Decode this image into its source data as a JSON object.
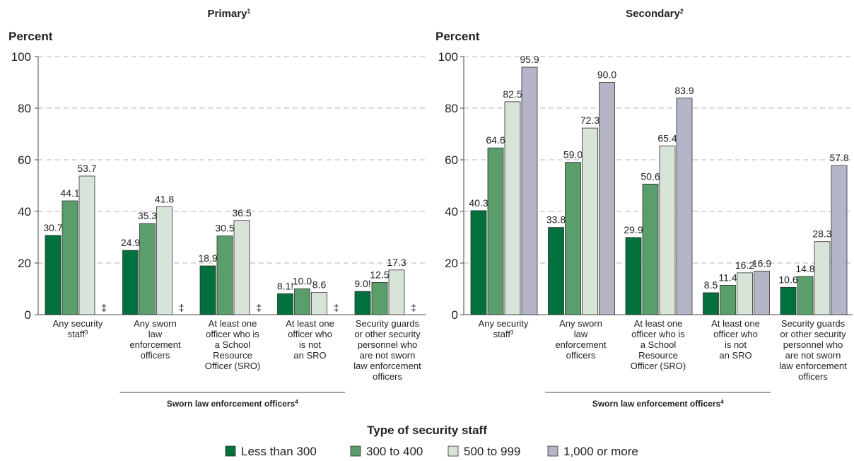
{
  "chart_data": [
    {
      "type": "bar",
      "title": "Primary",
      "title_note": "1",
      "ylabel": "Percent",
      "ylim": [
        0,
        100
      ],
      "yticks": [
        "0",
        "20",
        "40",
        "60",
        "80",
        "100"
      ],
      "grid": true,
      "categories": [
        {
          "lines": [
            "Any security",
            "staff"
          ],
          "note": "3"
        },
        {
          "lines": [
            "Any sworn",
            "law",
            "enforcement",
            "officers"
          ]
        },
        {
          "lines": [
            "At least one",
            "officer who is",
            "a School",
            "Resource",
            "Officer (SRO)"
          ]
        },
        {
          "lines": [
            "At least one",
            "officer who",
            "is not",
            "an SRO"
          ]
        },
        {
          "lines": [
            "Security guards",
            "or other security",
            "personnel who",
            "are not sworn",
            "law enforcement",
            "officers"
          ]
        }
      ],
      "series": [
        {
          "name": "Less than 300",
          "values": [
            30.7,
            24.9,
            18.9,
            8.1,
            9.0
          ],
          "labels": [
            "30.7",
            "24.9",
            "18.9",
            "8.1!",
            "9.0!"
          ]
        },
        {
          "name": "300 to 400",
          "values": [
            44.1,
            35.3,
            30.5,
            10.0,
            12.5
          ],
          "labels": [
            "44.1",
            "35.3",
            "30.5",
            "10.0",
            "12.5"
          ]
        },
        {
          "name": "500 to 999",
          "values": [
            53.7,
            41.8,
            36.5,
            8.6,
            17.3
          ],
          "labels": [
            "53.7",
            "41.8",
            "36.5",
            "8.6",
            "17.3"
          ]
        },
        {
          "name": "1,000 or more",
          "values": [
            null,
            null,
            null,
            null,
            null
          ],
          "labels": [
            "‡",
            "‡",
            "‡",
            "‡",
            "‡"
          ]
        }
      ],
      "group_label": "Sworn law enforcement officers",
      "group_label_note": "4"
    },
    {
      "type": "bar",
      "title": "Secondary",
      "title_note": "2",
      "ylabel": "Percent",
      "ylim": [
        0,
        100
      ],
      "yticks": [
        "0",
        "20",
        "40",
        "60",
        "80",
        "100"
      ],
      "grid": true,
      "categories": [
        {
          "lines": [
            "Any security",
            "staff"
          ],
          "note": "3"
        },
        {
          "lines": [
            "Any sworn",
            "law",
            "enforcement",
            "officers"
          ]
        },
        {
          "lines": [
            "At least one",
            "officer who is",
            "a School",
            "Resource",
            "Officer (SRO)"
          ]
        },
        {
          "lines": [
            "At least one",
            "officer who",
            "is not",
            "an SRO"
          ]
        },
        {
          "lines": [
            "Security guards",
            "or other security",
            "personnel who",
            "are not sworn",
            "law enforcement",
            "officers"
          ]
        }
      ],
      "series": [
        {
          "name": "Less than 300",
          "values": [
            40.3,
            33.8,
            29.9,
            8.5,
            10.6
          ],
          "labels": [
            "40.3",
            "33.8",
            "29.9",
            "8.5",
            "10.6"
          ]
        },
        {
          "name": "300 to 400",
          "values": [
            64.6,
            59.0,
            50.6,
            11.4,
            14.8
          ],
          "labels": [
            "64.6",
            "59.0",
            "50.6",
            "11.4",
            "14.8"
          ]
        },
        {
          "name": "500 to 999",
          "values": [
            82.5,
            72.3,
            65.4,
            16.2,
            28.3
          ],
          "labels": [
            "82.5",
            "72.3",
            "65.4",
            "16.2",
            "28.3"
          ]
        },
        {
          "name": "1,000 or more",
          "values": [
            95.9,
            90.0,
            83.9,
            16.9,
            57.8
          ],
          "labels": [
            "95.9",
            "90.0",
            "83.9",
            "16.9",
            "57.8"
          ]
        }
      ],
      "group_label": "Sworn law enforcement officers",
      "group_label_note": "4"
    }
  ],
  "xlabel": "Type of security staff",
  "legend": {
    "placement": "bottom",
    "items": [
      {
        "label": "Less than 300",
        "color": "#00703c"
      },
      {
        "label": "300 to 400",
        "color": "#5a9e6c"
      },
      {
        "label": "500 to 999",
        "color": "#d7e4d7"
      },
      {
        "label": "1,000 or more",
        "color": "#b4b6c8"
      }
    ]
  }
}
